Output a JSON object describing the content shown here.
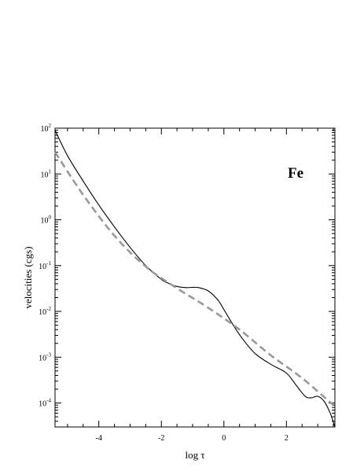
{
  "chart_data": {
    "type": "line",
    "xlabel": "log τ",
    "ylabel": "velocities (cgs)",
    "annotation": "Fe",
    "xlim": [
      -5.4,
      3.55
    ],
    "ylim": [
      3e-05,
      100
    ],
    "y_scale": "log",
    "grid": false,
    "x_ticks": [
      -4,
      -2,
      0,
      2
    ],
    "x_tick_labels": [
      "-4",
      "-2",
      "0",
      "2"
    ],
    "y_ticks": [
      0.0001,
      0.001,
      0.01,
      0.1,
      1,
      10,
      100
    ],
    "y_tick_exponents": [
      "-4",
      "-3",
      "-2",
      "-1",
      "0",
      "1",
      "2"
    ],
    "y_tick_base": "10",
    "series": [
      {
        "style": "solid",
        "color": "#000000",
        "x": [
          -5.4,
          -5.0,
          -4.5,
          -4.0,
          -3.5,
          -3.0,
          -2.5,
          -2.0,
          -1.8,
          -1.5,
          -1.2,
          -1.0,
          -0.8,
          -0.5,
          -0.2,
          0.0,
          0.3,
          0.6,
          1.0,
          1.5,
          2.0,
          2.3,
          2.6,
          2.8,
          3.0,
          3.2,
          3.4,
          3.55
        ],
        "y": [
          90,
          25,
          7,
          2.1,
          0.7,
          0.25,
          0.1,
          0.05,
          0.042,
          0.035,
          0.033,
          0.0335,
          0.033,
          0.028,
          0.018,
          0.011,
          0.005,
          0.0025,
          0.0012,
          0.0007,
          0.00045,
          0.00025,
          0.00014,
          0.00013,
          0.00014,
          0.00011,
          6e-05,
          3e-05
        ]
      },
      {
        "style": "dashed",
        "color": "#999999",
        "x": [
          -5.4,
          -4.5,
          -3.5,
          -2.5,
          -1.5,
          -0.5,
          0.5,
          1.5,
          2.5,
          3.5
        ],
        "y": [
          30,
          3.5,
          0.45,
          0.095,
          0.032,
          0.012,
          0.004,
          0.0011,
          0.00035,
          9e-05
        ]
      }
    ]
  }
}
